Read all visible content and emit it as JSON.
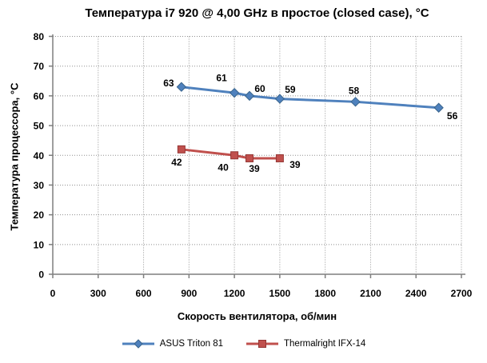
{
  "chart_data": {
    "type": "line",
    "title": "Температура i7 920 @ 4,00 GHz в простое (closed case), °C",
    "xlabel": "Скорость вентилятора, об/мин",
    "ylabel": "Температура процессора, °C",
    "xlim": [
      0,
      2700
    ],
    "ylim": [
      0,
      80
    ],
    "xticks": [
      0,
      300,
      600,
      900,
      1200,
      1500,
      1800,
      2100,
      2400,
      2700
    ],
    "yticks": [
      0,
      10,
      20,
      30,
      40,
      50,
      60,
      70,
      80
    ],
    "grid": "both-dotted-gray",
    "legend_position": "bottom-center",
    "series": [
      {
        "name": "ASUS Triton 81",
        "color": "#4F81BD",
        "edge_color": "#39648C",
        "marker": "diamond",
        "points": [
          {
            "x": 850,
            "y": 63,
            "label": "63",
            "label_dx": -16,
            "label_dy": -5
          },
          {
            "x": 1200,
            "y": 61,
            "label": "61",
            "label_dx": -16,
            "label_dy": -19
          },
          {
            "x": 1300,
            "y": 60,
            "label": "60",
            "label_dx": 13,
            "label_dy": -9
          },
          {
            "x": 1500,
            "y": 59,
            "label": "59",
            "label_dx": 13,
            "label_dy": -12
          },
          {
            "x": 2000,
            "y": 58,
            "label": "58",
            "label_dx": -2,
            "label_dy": -14
          },
          {
            "x": 2550,
            "y": 56,
            "label": "56",
            "label_dx": 17,
            "label_dy": 10
          }
        ]
      },
      {
        "name": "Thermalright IFX-14",
        "color": "#C0504D",
        "edge_color": "#943634",
        "marker": "square",
        "points": [
          {
            "x": 850,
            "y": 42,
            "label": "42",
            "label_dx": -6,
            "label_dy": 16
          },
          {
            "x": 1200,
            "y": 40,
            "label": "40",
            "label_dx": -14,
            "label_dy": 15
          },
          {
            "x": 1300,
            "y": 39,
            "label": "39",
            "label_dx": 6,
            "label_dy": 13
          },
          {
            "x": 1500,
            "y": 39,
            "label": "39",
            "label_dx": 19,
            "label_dy": 8
          }
        ]
      }
    ]
  }
}
